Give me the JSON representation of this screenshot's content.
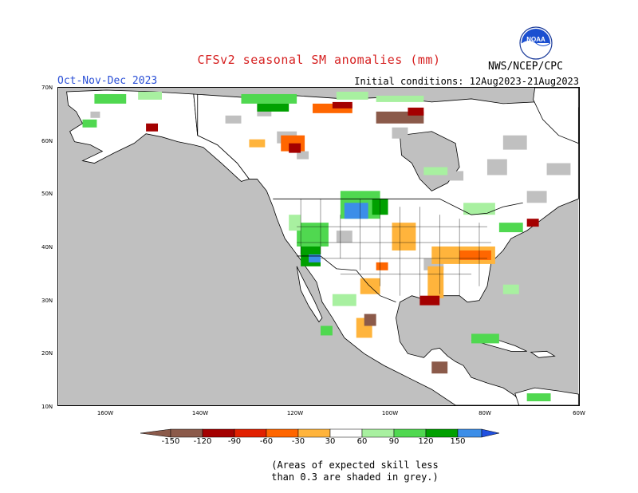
{
  "title": "CFSv2 seasonal SM anomalies (mm)",
  "period": "Oct-Nov-Dec 2023",
  "initial_conditions": "Initial conditions: 12Aug2023-21Aug2023",
  "agency": "NWS/NCEP/CPC",
  "logo_text": "NOAA",
  "note_line1": "(Areas of expected skill less",
  "note_line2": "than 0.3 are shaded in grey.)",
  "lat_labels": [
    "70N",
    "60N",
    "50N",
    "40N",
    "30N",
    "20N",
    "10N"
  ],
  "lon_labels": [
    "160W",
    "140W",
    "120W",
    "100W",
    "80W",
    "60W"
  ],
  "legend": {
    "labels": [
      "-150",
      "-120",
      "-90",
      "-60",
      "-30",
      "30",
      "60",
      "90",
      "120",
      "150"
    ],
    "colors": [
      "#8b5a4a",
      "#a40000",
      "#e12000",
      "#ff6600",
      "#ffb43c",
      "#ffffff",
      "#a8f0a0",
      "#50d850",
      "#00a000",
      "#3c8ee8",
      "#2050e0"
    ]
  },
  "colors": {
    "ocean": "#c0c0c0",
    "land": "#ffffff",
    "border": "#000000",
    "title": "#d62020",
    "period": "#2a4fd6"
  }
}
